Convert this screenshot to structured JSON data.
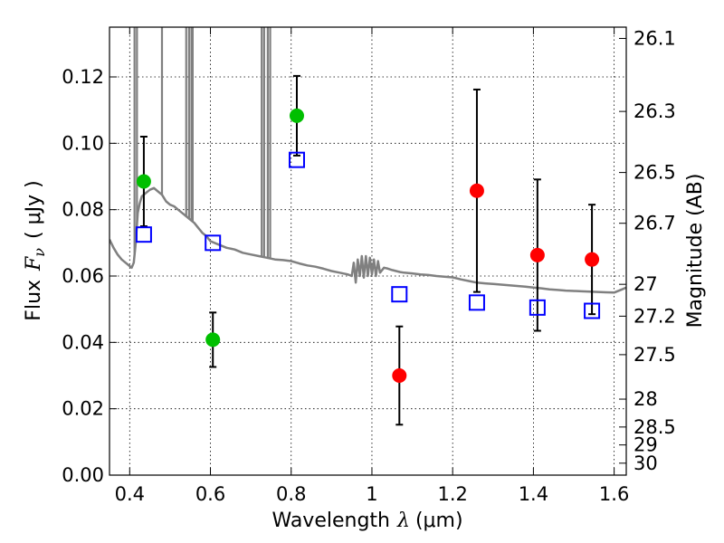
{
  "chart_data": {
    "type": "scatter",
    "title": "",
    "x_axis": {
      "range": [
        0.35,
        1.63
      ],
      "ticks": [
        0.4,
        0.6,
        0.8,
        1.0,
        1.2,
        1.4,
        1.6
      ],
      "tick_labels": [
        "0.4",
        "0.6",
        "0.8",
        "1",
        "1.2",
        "1.4",
        "1.6"
      ],
      "label_prefix": "Wavelength",
      "label_symbol": "λ",
      "label_unit": "(μm)"
    },
    "y_axis_left": {
      "range": [
        0.0,
        0.135
      ],
      "ticks": [
        0.0,
        0.02,
        0.04,
        0.06,
        0.08,
        0.1,
        0.12
      ],
      "tick_labels": [
        "0.00",
        "0.02",
        "0.04",
        "0.06",
        "0.08",
        "0.10",
        "0.12"
      ],
      "label_prefix": "Flux",
      "label_symbol": "F",
      "label_subscript": "ν",
      "label_unit": "( μJy )"
    },
    "y_axis_right": {
      "label": "Magnitude (AB)",
      "ticks": [
        {
          "label": "26.1",
          "flux": 0.1316
        },
        {
          "label": "26.3",
          "flux": 0.1096
        },
        {
          "label": "26.5",
          "flux": 0.0912
        },
        {
          "label": "26.7",
          "flux": 0.0759
        },
        {
          "label": "27",
          "flux": 0.0575
        },
        {
          "label": "27.2",
          "flux": 0.0479
        },
        {
          "label": "27.5",
          "flux": 0.0363
        },
        {
          "label": "28",
          "flux": 0.0229
        },
        {
          "label": "28.5",
          "flux": 0.0145
        },
        {
          "label": "29",
          "flux": 0.0091
        },
        {
          "label": "30",
          "flux": 0.0036
        }
      ]
    },
    "grid": true,
    "colors": {
      "green": "#00bf00",
      "red": "#ff0000",
      "blue": "#0000ff",
      "model": "#808080",
      "errorbar": "#000000"
    },
    "series": [
      {
        "marker": "circle",
        "color": "green",
        "points": [
          {
            "x": 0.435,
            "y": 0.0885,
            "err_low": 0.0135,
            "err_high": 0.0135
          },
          {
            "x": 0.606,
            "y": 0.0408,
            "err_low": 0.0082,
            "err_high": 0.0082
          },
          {
            "x": 0.814,
            "y": 0.1083,
            "err_low": 0.012,
            "err_high": 0.012
          }
        ]
      },
      {
        "marker": "circle",
        "color": "red",
        "points": [
          {
            "x": 1.068,
            "y": 0.03,
            "err_low": 0.0148,
            "err_high": 0.0148
          },
          {
            "x": 1.26,
            "y": 0.0857,
            "err_low": 0.0305,
            "err_high": 0.0305
          },
          {
            "x": 1.41,
            "y": 0.0663,
            "err_low": 0.0228,
            "err_high": 0.0228
          },
          {
            "x": 1.545,
            "y": 0.065,
            "err_low": 0.0165,
            "err_high": 0.0165
          }
        ]
      },
      {
        "marker": "open-square",
        "color": "blue",
        "points": [
          {
            "x": 0.435,
            "y": 0.0725
          },
          {
            "x": 0.606,
            "y": 0.07
          },
          {
            "x": 0.814,
            "y": 0.095
          },
          {
            "x": 1.068,
            "y": 0.0545
          },
          {
            "x": 1.26,
            "y": 0.052
          },
          {
            "x": 1.41,
            "y": 0.0505
          },
          {
            "x": 1.545,
            "y": 0.0495
          }
        ]
      }
    ],
    "model_spectrum": {
      "color": "model",
      "x": [
        0.35,
        0.36,
        0.37,
        0.38,
        0.39,
        0.4,
        0.405,
        0.41,
        0.415,
        0.42,
        0.425,
        0.43,
        0.44,
        0.45,
        0.46,
        0.47,
        0.48,
        0.49,
        0.5,
        0.51,
        0.52,
        0.53,
        0.54,
        0.55,
        0.56,
        0.57,
        0.58,
        0.59,
        0.6,
        0.62,
        0.64,
        0.66,
        0.68,
        0.7,
        0.72,
        0.74,
        0.76,
        0.78,
        0.8,
        0.82,
        0.84,
        0.86,
        0.88,
        0.9,
        0.92,
        0.94,
        0.95,
        0.955,
        0.96,
        0.965,
        0.97,
        0.975,
        0.98,
        0.985,
        0.99,
        0.995,
        1.0,
        1.005,
        1.01,
        1.015,
        1.02,
        1.03,
        1.04,
        1.05,
        1.06,
        1.07,
        1.08,
        1.1,
        1.12,
        1.14,
        1.16,
        1.18,
        1.2,
        1.22,
        1.24,
        1.26,
        1.28,
        1.3,
        1.32,
        1.34,
        1.36,
        1.38,
        1.4,
        1.42,
        1.44,
        1.46,
        1.48,
        1.5,
        1.52,
        1.54,
        1.56,
        1.58,
        1.6,
        1.62,
        1.63
      ],
      "y": [
        0.071,
        0.0685,
        0.0665,
        0.065,
        0.064,
        0.063,
        0.0625,
        0.064,
        0.07,
        0.079,
        0.082,
        0.084,
        0.085,
        0.086,
        0.0865,
        0.0855,
        0.0845,
        0.0825,
        0.0815,
        0.081,
        0.08,
        0.079,
        0.078,
        0.077,
        0.076,
        0.0745,
        0.073,
        0.072,
        0.0705,
        0.0695,
        0.0685,
        0.068,
        0.067,
        0.0665,
        0.066,
        0.0655,
        0.065,
        0.0648,
        0.0645,
        0.0638,
        0.0632,
        0.0628,
        0.0622,
        0.0615,
        0.061,
        0.0605,
        0.06,
        0.064,
        0.058,
        0.065,
        0.06,
        0.066,
        0.0595,
        0.066,
        0.06,
        0.0655,
        0.0605,
        0.065,
        0.06,
        0.0645,
        0.061,
        0.0625,
        0.0622,
        0.0618,
        0.0615,
        0.0612,
        0.061,
        0.0608,
        0.0605,
        0.0603,
        0.06,
        0.0598,
        0.0596,
        0.059,
        0.0585,
        0.058,
        0.0578,
        0.0576,
        0.0574,
        0.0572,
        0.057,
        0.0568,
        0.0565,
        0.0563,
        0.056,
        0.0558,
        0.0556,
        0.0555,
        0.0554,
        0.0553,
        0.0552,
        0.0551,
        0.055,
        0.056,
        0.0565
      ]
    },
    "emission_spikes": [
      0.412,
      0.418,
      0.48,
      0.54,
      0.547,
      0.553,
      0.556,
      0.727,
      0.733,
      0.742,
      0.748
    ]
  }
}
